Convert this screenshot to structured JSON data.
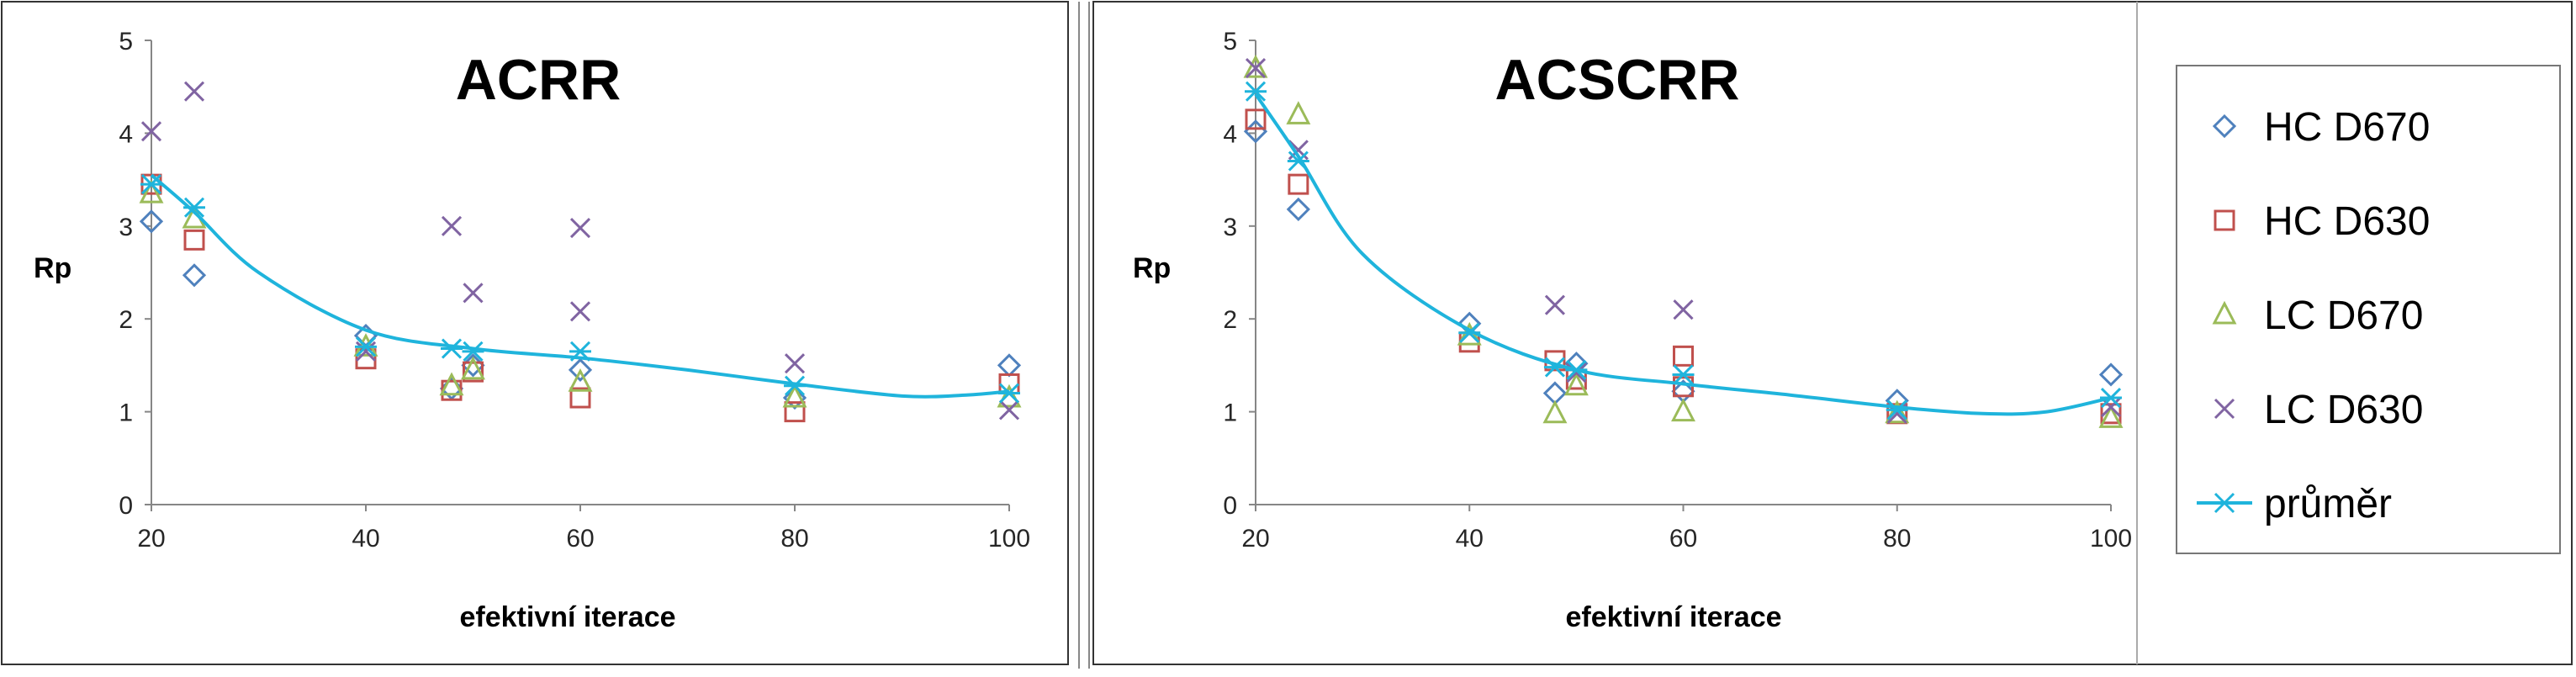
{
  "colors": {
    "HC D670": "#4f81bd",
    "HC D630": "#c0504d",
    "LC D670": "#9bbb59",
    "LC D630": "#8064a2",
    "průměr": "#1fb4dc"
  },
  "legend": {
    "placement": "right",
    "entries": [
      {
        "label": "HC D670",
        "marker": "diamond"
      },
      {
        "label": "HC D630",
        "marker": "square"
      },
      {
        "label": "LC D670",
        "marker": "triangle"
      },
      {
        "label": "LC D630",
        "marker": "x"
      },
      {
        "label": "průměr",
        "marker": "line-star"
      }
    ]
  },
  "chart_data": [
    {
      "type": "scatter",
      "title": "ACRR",
      "xlabel": "efektivní iterace",
      "ylabel": "Rp",
      "xlim": [
        20,
        100
      ],
      "ylim": [
        0,
        5
      ],
      "xticks": [
        "20",
        "40",
        "60",
        "80",
        "100"
      ],
      "yticks": [
        "0",
        "1",
        "2",
        "3",
        "4",
        "5"
      ],
      "grid": false,
      "series": [
        {
          "name": "HC D670",
          "marker": "diamond",
          "points": [
            [
              20,
              3.05
            ],
            [
              24,
              2.47
            ],
            [
              40,
              1.82
            ],
            [
              48,
              1.25
            ],
            [
              50,
              1.5
            ],
            [
              60,
              1.45
            ],
            [
              80,
              1.15
            ],
            [
              100,
              1.5
            ]
          ]
        },
        {
          "name": "HC D630",
          "marker": "square",
          "points": [
            [
              20,
              3.45
            ],
            [
              24,
              2.85
            ],
            [
              40,
              1.57
            ],
            [
              48,
              1.23
            ],
            [
              50,
              1.43
            ],
            [
              60,
              1.15
            ],
            [
              80,
              1.0
            ],
            [
              100,
              1.3
            ]
          ]
        },
        {
          "name": "LC D670",
          "marker": "triangle",
          "points": [
            [
              20,
              3.35
            ],
            [
              24,
              3.08
            ],
            [
              40,
              1.7
            ],
            [
              48,
              1.28
            ],
            [
              50,
              1.45
            ],
            [
              60,
              1.32
            ],
            [
              80,
              1.15
            ],
            [
              100,
              1.15
            ]
          ]
        },
        {
          "name": "LC D630",
          "marker": "x",
          "points": [
            [
              20,
              4.02
            ],
            [
              24,
              4.45
            ],
            [
              40,
              1.65
            ],
            [
              48,
              3.0
            ],
            [
              50,
              2.28
            ],
            [
              60,
              2.98
            ],
            [
              60,
              2.08
            ],
            [
              80,
              1.52
            ],
            [
              100,
              1.02
            ]
          ]
        },
        {
          "name": "průměr",
          "marker": "line-star",
          "points": [
            [
              20,
              3.45
            ],
            [
              24,
              3.2
            ],
            [
              40,
              1.7
            ],
            [
              48,
              1.68
            ],
            [
              50,
              1.65
            ],
            [
              60,
              1.65
            ],
            [
              80,
              1.28
            ],
            [
              100,
              1.2
            ]
          ],
          "curve": [
            [
              20,
              3.55
            ],
            [
              24,
              3.15
            ],
            [
              30,
              2.5
            ],
            [
              40,
              1.88
            ],
            [
              50,
              1.68
            ],
            [
              60,
              1.58
            ],
            [
              70,
              1.45
            ],
            [
              80,
              1.3
            ],
            [
              90,
              1.17
            ],
            [
              96,
              1.18
            ],
            [
              100,
              1.22
            ]
          ]
        }
      ]
    },
    {
      "type": "scatter",
      "title": "ACSCRR",
      "xlabel": "efektivní iterace",
      "ylabel": "Rp",
      "xlim": [
        20,
        100
      ],
      "ylim": [
        0,
        5
      ],
      "xticks": [
        "20",
        "40",
        "60",
        "80",
        "100"
      ],
      "yticks": [
        "0",
        "1",
        "2",
        "3",
        "4",
        "5"
      ],
      "grid": false,
      "series": [
        {
          "name": "HC D670",
          "marker": "diamond",
          "points": [
            [
              20,
              4.02
            ],
            [
              24,
              3.18
            ],
            [
              40,
              1.95
            ],
            [
              48,
              1.2
            ],
            [
              50,
              1.52
            ],
            [
              60,
              1.22
            ],
            [
              80,
              1.12
            ],
            [
              100,
              1.4
            ]
          ]
        },
        {
          "name": "HC D630",
          "marker": "square",
          "points": [
            [
              20,
              4.15
            ],
            [
              24,
              3.45
            ],
            [
              40,
              1.75
            ],
            [
              48,
              1.55
            ],
            [
              50,
              1.35
            ],
            [
              60,
              1.6
            ],
            [
              60,
              1.27
            ],
            [
              80,
              0.98
            ],
            [
              100,
              0.98
            ]
          ]
        },
        {
          "name": "LC D670",
          "marker": "triangle",
          "points": [
            [
              20,
              4.7
            ],
            [
              24,
              4.2
            ],
            [
              40,
              1.82
            ],
            [
              48,
              0.98
            ],
            [
              50,
              1.28
            ],
            [
              60,
              1.0
            ],
            [
              80,
              0.98
            ],
            [
              100,
              0.93
            ]
          ]
        },
        {
          "name": "LC D630",
          "marker": "x",
          "points": [
            [
              20,
              4.7
            ],
            [
              24,
              3.82
            ],
            [
              40,
              1.85
            ],
            [
              48,
              2.15
            ],
            [
              50,
              1.42
            ],
            [
              60,
              2.1
            ],
            [
              80,
              0.98
            ],
            [
              100,
              1.05
            ]
          ]
        },
        {
          "name": "průměr",
          "marker": "line-star",
          "points": [
            [
              20,
              4.45
            ],
            [
              24,
              3.7
            ],
            [
              40,
              1.85
            ],
            [
              48,
              1.48
            ],
            [
              50,
              1.45
            ],
            [
              60,
              1.4
            ],
            [
              80,
              1.02
            ],
            [
              100,
              1.15
            ]
          ],
          "curve": [
            [
              20,
              4.42
            ],
            [
              24,
              3.75
            ],
            [
              30,
              2.7
            ],
            [
              40,
              1.88
            ],
            [
              50,
              1.45
            ],
            [
              60,
              1.3
            ],
            [
              70,
              1.18
            ],
            [
              80,
              1.05
            ],
            [
              88,
              0.98
            ],
            [
              94,
              1.0
            ],
            [
              100,
              1.15
            ]
          ]
        }
      ]
    }
  ]
}
